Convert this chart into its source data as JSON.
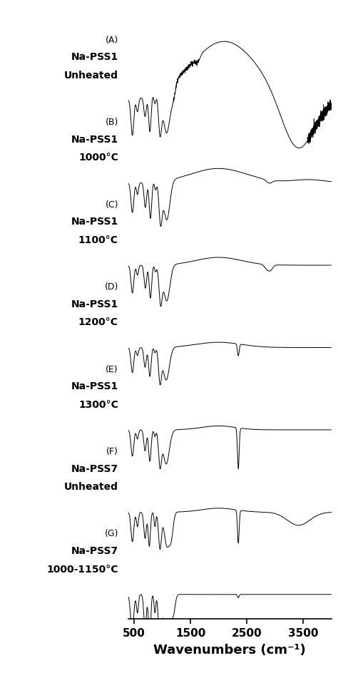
{
  "x_range": [
    400,
    4000
  ],
  "x_ticks": [
    500,
    1500,
    2500,
    3500
  ],
  "x_label": "Wavenumbers (cm⁻¹)",
  "fig_width": 4.74,
  "fig_height": 9.45,
  "bg_color": "white",
  "line_color": "black",
  "labels": [
    {
      "letter": "(A)",
      "line1": "Na-PSS1",
      "line2": "Unheated"
    },
    {
      "letter": "(B)",
      "line1": "Na-PSS1",
      "line2": "1000°C"
    },
    {
      "letter": "(C)",
      "line1": "Na-PSS1",
      "line2": "1100°C"
    },
    {
      "letter": "(D)",
      "line1": "Na-PSS1",
      "line2": "1200°C"
    },
    {
      "letter": "(E)",
      "line1": "Na-PSS1",
      "line2": "1300°C"
    },
    {
      "letter": "(F)",
      "line1": "Na-PSS7",
      "line2": "Unheated"
    },
    {
      "letter": "(G)",
      "line1": "Na-PSS7",
      "line2": "1000-1150°C"
    }
  ],
  "label_fontsize": 9,
  "label_bold_fontsize": 10,
  "xlabel_fontsize": 13,
  "xtick_fontsize": 11
}
